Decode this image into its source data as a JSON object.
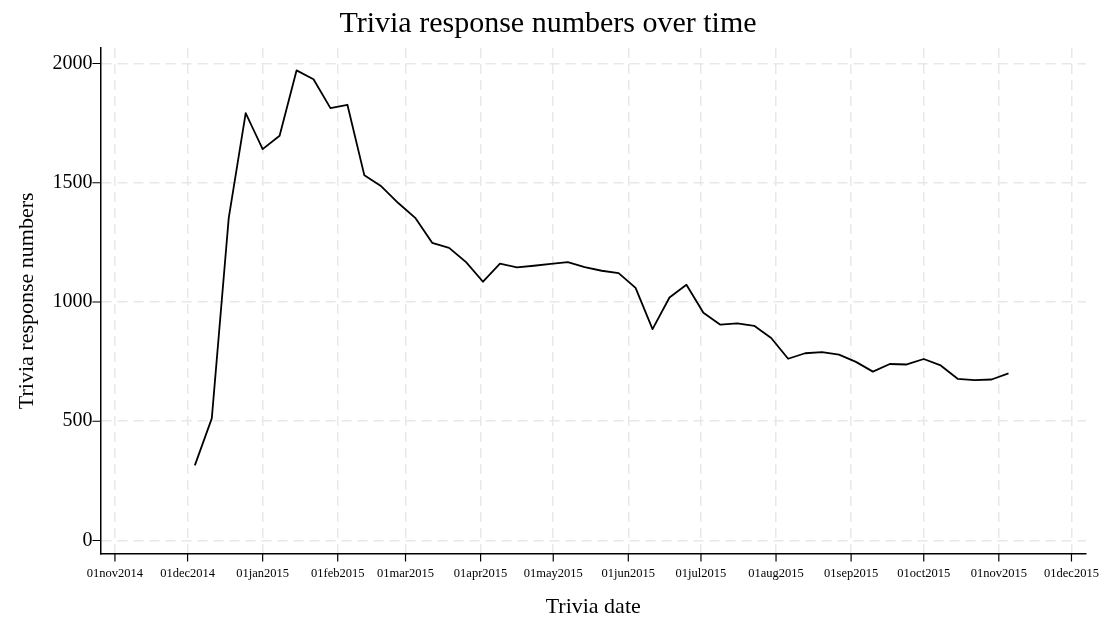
{
  "chart_data": {
    "type": "line",
    "title": "Trivia response numbers over time",
    "xlabel": "Trivia date",
    "ylabel": "Trivia response numbers",
    "x": [
      "2014-12-04",
      "2014-12-11",
      "2014-12-18",
      "2014-12-25",
      "2015-01-01",
      "2015-01-08",
      "2015-01-15",
      "2015-01-22",
      "2015-01-29",
      "2015-02-05",
      "2015-02-12",
      "2015-02-19",
      "2015-02-26",
      "2015-03-05",
      "2015-03-12",
      "2015-03-19",
      "2015-03-26",
      "2015-04-02",
      "2015-04-09",
      "2015-04-16",
      "2015-04-23",
      "2015-04-30",
      "2015-05-07",
      "2015-05-14",
      "2015-05-21",
      "2015-05-28",
      "2015-06-04",
      "2015-06-11",
      "2015-06-18",
      "2015-06-25",
      "2015-07-02",
      "2015-07-09",
      "2015-07-16",
      "2015-07-23",
      "2015-07-30",
      "2015-08-06",
      "2015-08-13",
      "2015-08-20",
      "2015-08-27",
      "2015-09-03",
      "2015-09-10",
      "2015-09-17",
      "2015-09-24",
      "2015-10-01",
      "2015-10-08",
      "2015-10-15",
      "2015-10-22",
      "2015-10-29",
      "2015-11-05"
    ],
    "series": [
      {
        "color": "#000000",
        "values": [
          315,
          512,
          1353,
          1792,
          1641,
          1697,
          1971,
          1934,
          1813,
          1827,
          1531,
          1485,
          1415,
          1353,
          1248,
          1227,
          1167,
          1085,
          1161,
          1145,
          1152,
          1160,
          1167,
          1146,
          1131,
          1121,
          1059,
          886,
          1019,
          1072,
          955,
          905,
          910,
          900,
          849,
          762,
          785,
          790,
          779,
          749,
          708,
          740,
          738,
          761,
          734,
          678,
          672,
          675,
          701
        ]
      }
    ],
    "xlim": [
      "2014-10-26",
      "2015-12-07"
    ],
    "xticks": [
      {
        "value": "2014-11-01",
        "label": "01nov2014"
      },
      {
        "value": "2014-12-01",
        "label": "01dec2014"
      },
      {
        "value": "2015-01-01",
        "label": "01jan2015"
      },
      {
        "value": "2015-02-01",
        "label": "01feb2015"
      },
      {
        "value": "2015-03-01",
        "label": "01mar2015"
      },
      {
        "value": "2015-04-01",
        "label": "01apr2015"
      },
      {
        "value": "2015-05-01",
        "label": "01may2015"
      },
      {
        "value": "2015-06-01",
        "label": "01jun2015"
      },
      {
        "value": "2015-07-01",
        "label": "01jul2015"
      },
      {
        "value": "2015-08-01",
        "label": "01aug2015"
      },
      {
        "value": "2015-09-01",
        "label": "01sep2015"
      },
      {
        "value": "2015-10-01",
        "label": "01oct2015"
      },
      {
        "value": "2015-11-01",
        "label": "01nov2015"
      },
      {
        "value": "2015-12-01",
        "label": "01dec2015"
      }
    ],
    "ylim": [
      -55,
      2065
    ],
    "yticks": [
      0,
      500,
      1000,
      1500,
      2000
    ],
    "grid": true,
    "legend": false,
    "marker": "none",
    "line_style": "solid"
  }
}
